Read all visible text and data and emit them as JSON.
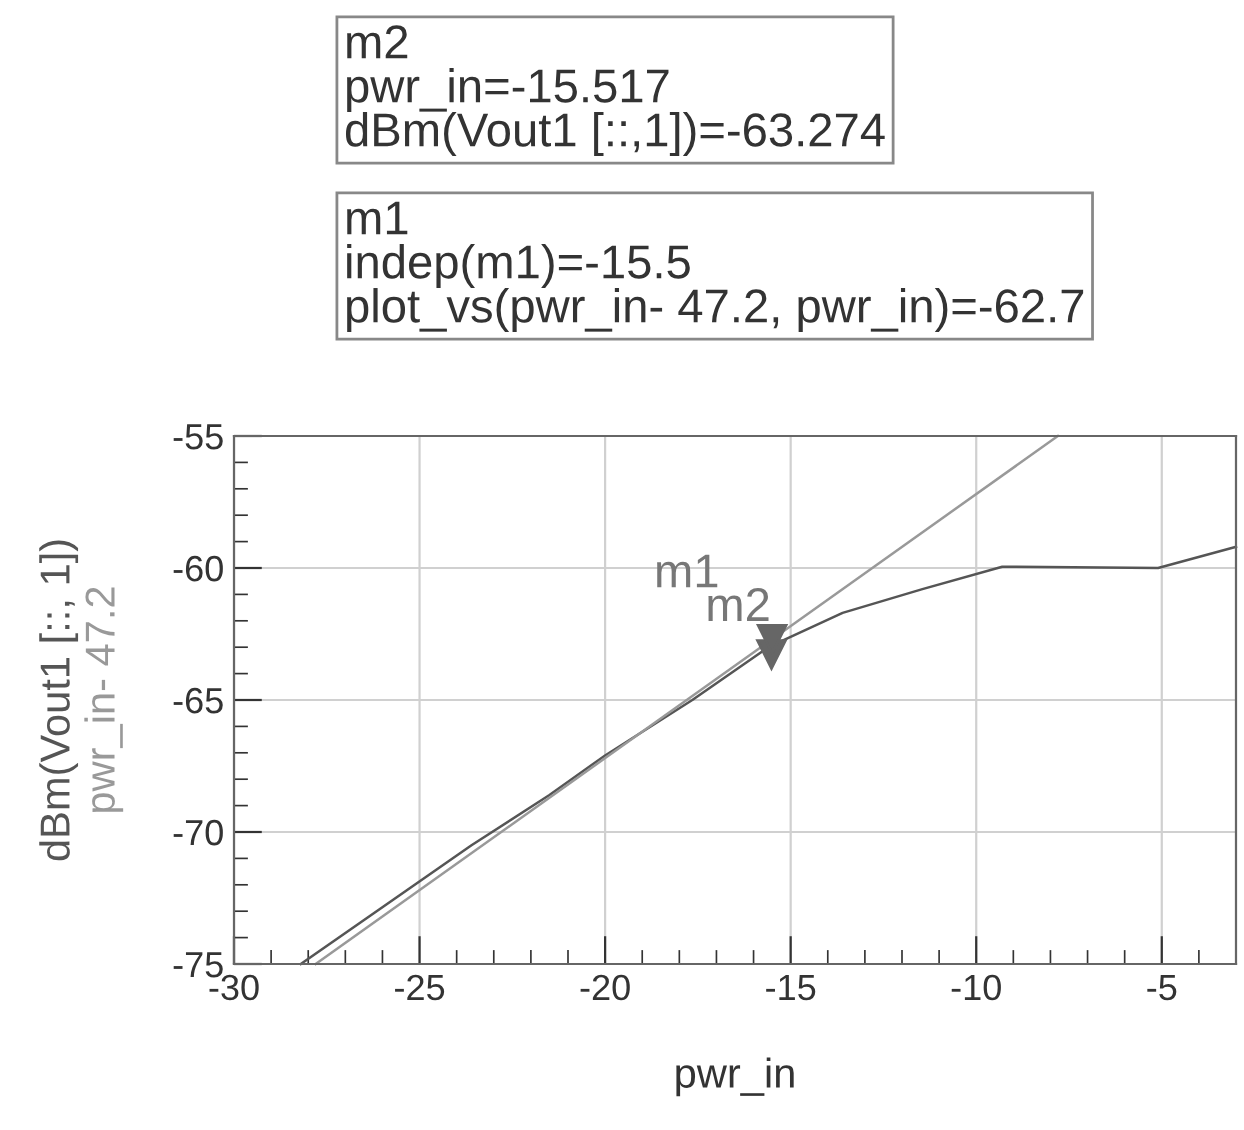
{
  "chart_data": {
    "type": "line",
    "xlabel": "pwr_in",
    "x": [
      -28.2,
      -23.6,
      -21.5,
      -20,
      -17.65,
      -15.6,
      -13.6,
      -11.45,
      -9.3,
      -5.1,
      -3
    ],
    "series": [
      {
        "name": "dBm(Vout1 [::, 1])",
        "color": "#555555",
        "values": [
          -75,
          -70.5,
          -68.6,
          -67.1,
          -65,
          -63.0,
          -61.7,
          -60.8,
          -59.95,
          -60,
          -59.2
        ]
      },
      {
        "name": "pwr_in- 47.2",
        "color": "#999999",
        "x": [
          -27.8,
          -7.8
        ],
        "values": [
          -75,
          -55
        ]
      }
    ],
    "xlim": [
      -30,
      -3
    ],
    "ylim": [
      -75,
      -55
    ],
    "xticks": [
      -30,
      -25,
      -20,
      -15,
      -10,
      -5
    ],
    "yticks": [
      -75,
      -70,
      -65,
      -60,
      -55
    ],
    "grid": true,
    "legend": false,
    "marker": "none",
    "line_style": "solid",
    "annotations": [
      "m2\npwr_in=-15.517\ndBm(Vout1 [::,1])=-63.274",
      "m1\nindep(m1)=-15.5\nplot_vs(pwr_in- 47.2, pwr_in)=-62.7",
      {
        "text": "m2",
        "x": -15.517,
        "y": -63.274
      },
      {
        "text": "m1",
        "x": -15.5,
        "y": -62.7
      }
    ]
  }
}
